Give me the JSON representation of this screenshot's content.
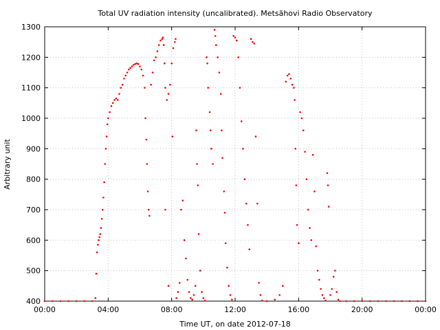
{
  "chart_data": {
    "type": "scatter",
    "title": "Total UV radiation intensity (uncalibrated). Metsähovi Radio Observatory",
    "xlabel": "Time UT, on date 2012-07-18",
    "ylabel": "Arbitrary unit",
    "x_unit": "hours UT",
    "xlim": [
      0,
      24
    ],
    "ylim": [
      400,
      1300
    ],
    "x_ticks": [
      {
        "value": 0,
        "label": "00:00"
      },
      {
        "value": 4,
        "label": "04:00"
      },
      {
        "value": 8,
        "label": "08:00"
      },
      {
        "value": 12,
        "label": "12:00"
      },
      {
        "value": 16,
        "label": "16:00"
      },
      {
        "value": 20,
        "label": "20:00"
      },
      {
        "value": 24,
        "label": "00:00"
      }
    ],
    "y_ticks": [
      400,
      500,
      600,
      700,
      800,
      900,
      1000,
      1100,
      1200,
      1300
    ],
    "grid": true,
    "legend": "none",
    "colors": {
      "points": "#ff0000",
      "grid": "#c0c0c0",
      "axes": "#000000"
    },
    "series": [
      {
        "points": [
          [
            0.0,
            400
          ],
          [
            0.5,
            400
          ],
          [
            1.0,
            400
          ],
          [
            1.5,
            400
          ],
          [
            2.0,
            400
          ],
          [
            2.5,
            400
          ],
          [
            3.0,
            400
          ],
          [
            3.2,
            410
          ],
          [
            3.25,
            490
          ],
          [
            3.3,
            560
          ],
          [
            3.35,
            585
          ],
          [
            3.4,
            600
          ],
          [
            3.45,
            610
          ],
          [
            3.5,
            620
          ],
          [
            3.55,
            640
          ],
          [
            3.6,
            670
          ],
          [
            3.65,
            700
          ],
          [
            3.7,
            740
          ],
          [
            3.75,
            790
          ],
          [
            3.8,
            850
          ],
          [
            3.85,
            900
          ],
          [
            3.9,
            940
          ],
          [
            3.95,
            980
          ],
          [
            4.0,
            1000
          ],
          [
            4.1,
            1020
          ],
          [
            4.2,
            1040
          ],
          [
            4.3,
            1050
          ],
          [
            4.4,
            1060
          ],
          [
            4.5,
            1065
          ],
          [
            4.6,
            1060
          ],
          [
            4.7,
            1080
          ],
          [
            4.8,
            1100
          ],
          [
            4.9,
            1110
          ],
          [
            5.0,
            1130
          ],
          [
            5.1,
            1140
          ],
          [
            5.2,
            1150
          ],
          [
            5.3,
            1160
          ],
          [
            5.4,
            1165
          ],
          [
            5.5,
            1170
          ],
          [
            5.6,
            1175
          ],
          [
            5.7,
            1178
          ],
          [
            5.8,
            1180
          ],
          [
            5.9,
            1178
          ],
          [
            6.0,
            1170
          ],
          [
            6.1,
            1160
          ],
          [
            6.2,
            1140
          ],
          [
            6.3,
            1100
          ],
          [
            6.35,
            1000
          ],
          [
            6.4,
            930
          ],
          [
            6.45,
            850
          ],
          [
            6.5,
            760
          ],
          [
            6.55,
            700
          ],
          [
            6.6,
            680
          ],
          [
            6.7,
            1110
          ],
          [
            6.8,
            1150
          ],
          [
            6.9,
            1190
          ],
          [
            7.0,
            1200
          ],
          [
            7.1,
            1220
          ],
          [
            7.2,
            1240
          ],
          [
            7.3,
            1255
          ],
          [
            7.4,
            1260
          ],
          [
            7.45,
            1265
          ],
          [
            7.5,
            1240
          ],
          [
            7.55,
            1180
          ],
          [
            7.6,
            1100
          ],
          [
            7.7,
            1060
          ],
          [
            7.8,
            1080
          ],
          [
            7.9,
            1110
          ],
          [
            8.0,
            1180
          ],
          [
            8.1,
            1230
          ],
          [
            8.2,
            1250
          ],
          [
            8.25,
            1260
          ],
          [
            7.6,
            700
          ],
          [
            7.8,
            450
          ],
          [
            8.05,
            940
          ],
          [
            8.3,
            410
          ],
          [
            8.4,
            430
          ],
          [
            8.5,
            460
          ],
          [
            8.6,
            700
          ],
          [
            8.7,
            730
          ],
          [
            8.8,
            600
          ],
          [
            8.9,
            540
          ],
          [
            9.0,
            470
          ],
          [
            9.1,
            430
          ],
          [
            9.2,
            410
          ],
          [
            9.3,
            405
          ],
          [
            9.4,
            420
          ],
          [
            9.5,
            450
          ],
          [
            9.55,
            960
          ],
          [
            9.6,
            850
          ],
          [
            9.65,
            780
          ],
          [
            9.7,
            620
          ],
          [
            9.8,
            500
          ],
          [
            9.9,
            430
          ],
          [
            10.0,
            410
          ],
          [
            10.1,
            402
          ],
          [
            10.2,
            1200
          ],
          [
            10.25,
            1180
          ],
          [
            10.3,
            1100
          ],
          [
            10.4,
            1020
          ],
          [
            10.45,
            960
          ],
          [
            10.5,
            900
          ],
          [
            10.6,
            850
          ],
          [
            10.7,
            1290
          ],
          [
            10.75,
            1270
          ],
          [
            10.8,
            1240
          ],
          [
            10.9,
            1200
          ],
          [
            11.0,
            1150
          ],
          [
            11.1,
            1080
          ],
          [
            11.15,
            960
          ],
          [
            11.2,
            870
          ],
          [
            11.3,
            760
          ],
          [
            11.35,
            690
          ],
          [
            11.4,
            590
          ],
          [
            11.5,
            510
          ],
          [
            11.6,
            450
          ],
          [
            11.7,
            420
          ],
          [
            11.8,
            405
          ],
          [
            11.9,
            1270
          ],
          [
            12.0,
            1265
          ],
          [
            12.1,
            1255
          ],
          [
            12.2,
            1200
          ],
          [
            12.3,
            1100
          ],
          [
            12.4,
            990
          ],
          [
            12.5,
            900
          ],
          [
            12.6,
            800
          ],
          [
            12.7,
            720
          ],
          [
            12.8,
            650
          ],
          [
            12.9,
            570
          ],
          [
            13.0,
            1260
          ],
          [
            13.1,
            1250
          ],
          [
            13.2,
            1245
          ],
          [
            13.3,
            940
          ],
          [
            13.4,
            720
          ],
          [
            13.5,
            460
          ],
          [
            13.6,
            420
          ],
          [
            13.7,
            402
          ],
          [
            14.0,
            400
          ],
          [
            14.5,
            405
          ],
          [
            14.8,
            420
          ],
          [
            15.0,
            450
          ],
          [
            15.2,
            1120
          ],
          [
            15.3,
            1140
          ],
          [
            15.4,
            1145
          ],
          [
            15.5,
            1130
          ],
          [
            15.6,
            1110
          ],
          [
            15.7,
            1100
          ],
          [
            15.75,
            1060
          ],
          [
            15.8,
            900
          ],
          [
            15.85,
            780
          ],
          [
            15.9,
            650
          ],
          [
            16.0,
            590
          ],
          [
            16.1,
            1020
          ],
          [
            16.2,
            1000
          ],
          [
            16.3,
            960
          ],
          [
            16.4,
            890
          ],
          [
            16.5,
            800
          ],
          [
            16.6,
            700
          ],
          [
            16.7,
            640
          ],
          [
            16.8,
            600
          ],
          [
            16.9,
            880
          ],
          [
            17.0,
            760
          ],
          [
            17.1,
            580
          ],
          [
            17.2,
            500
          ],
          [
            17.3,
            470
          ],
          [
            17.4,
            440
          ],
          [
            17.5,
            420
          ],
          [
            17.6,
            410
          ],
          [
            17.7,
            402
          ],
          [
            17.8,
            820
          ],
          [
            17.85,
            780
          ],
          [
            17.9,
            710
          ],
          [
            18.0,
            420
          ],
          [
            18.1,
            440
          ],
          [
            18.2,
            480
          ],
          [
            18.3,
            500
          ],
          [
            18.4,
            430
          ],
          [
            18.5,
            405
          ],
          [
            18.6,
            400
          ],
          [
            19.0,
            400
          ],
          [
            19.5,
            400
          ],
          [
            20.0,
            400
          ],
          [
            20.5,
            400
          ],
          [
            21.0,
            400
          ],
          [
            21.5,
            400
          ],
          [
            22.0,
            400
          ],
          [
            22.5,
            400
          ],
          [
            23.0,
            400
          ],
          [
            23.5,
            400
          ],
          [
            24.0,
            400
          ]
        ]
      }
    ]
  }
}
